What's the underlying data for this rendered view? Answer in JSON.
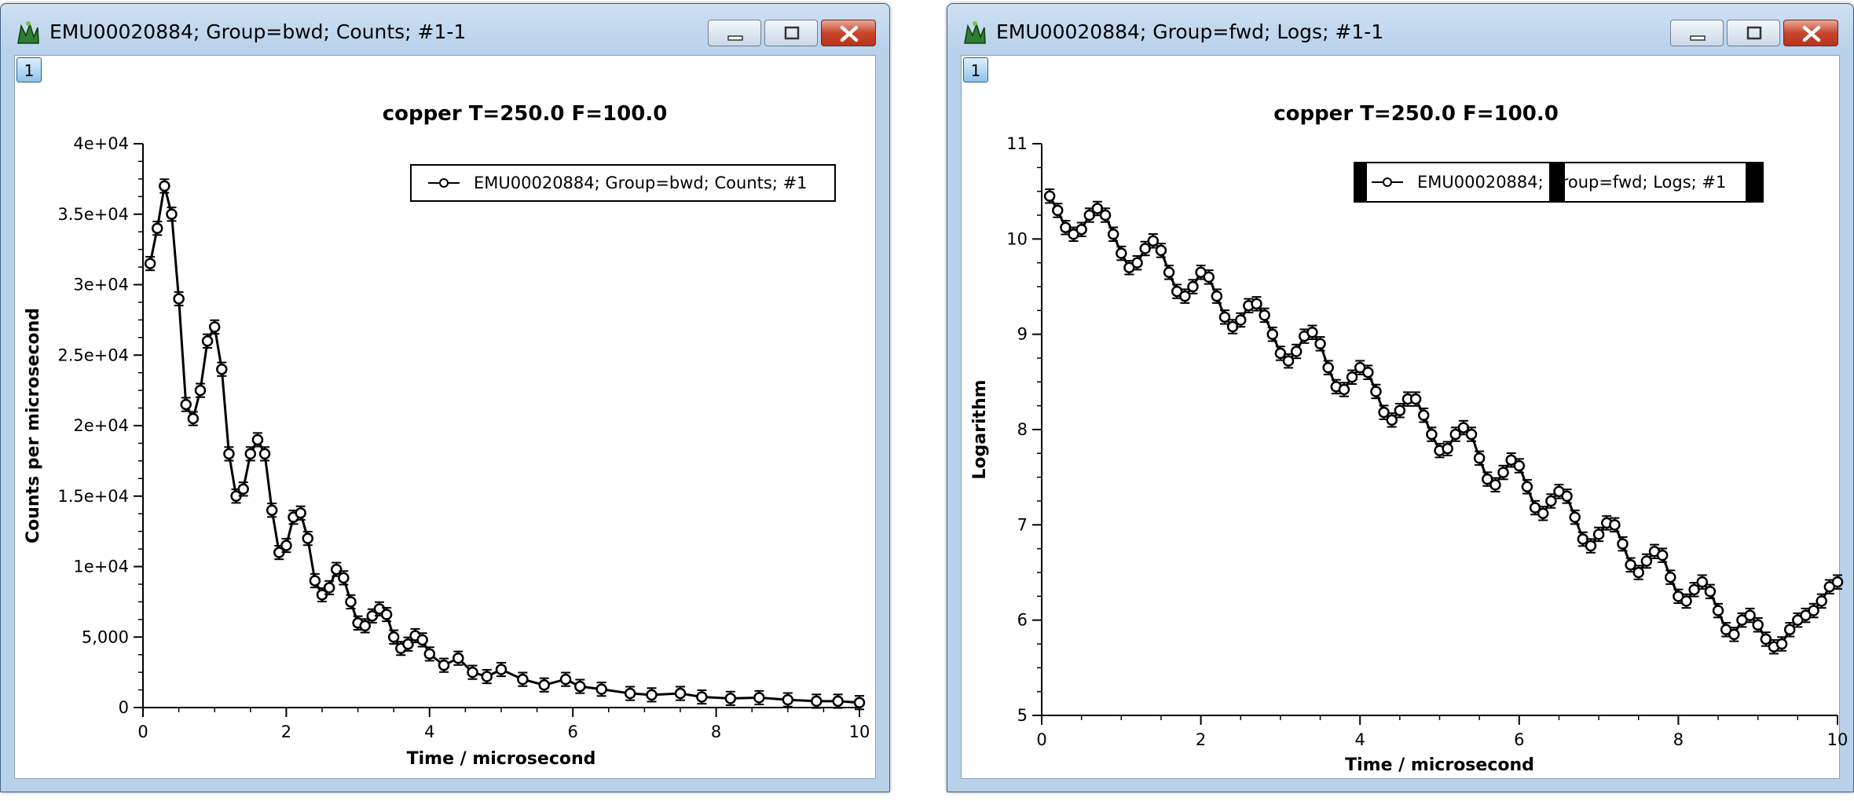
{
  "windows": [
    {
      "title": "EMU00020884; Group=bwd; Counts; #1-1",
      "graph_button_label": "1",
      "chart_data": {
        "type": "scatter",
        "title": "copper T=250.0 F=100.0",
        "xlabel": "Time / microsecond",
        "ylabel": "Counts per microsecond",
        "xlim": [
          0,
          10
        ],
        "ylim": [
          0,
          40000
        ],
        "x_ticks": [
          0,
          2,
          4,
          6,
          8,
          10
        ],
        "x_tick_labels": [
          "0",
          "2",
          "4",
          "6",
          "8",
          "10"
        ],
        "y_ticks": [
          0,
          5000,
          10000,
          15000,
          20000,
          25000,
          30000,
          35000,
          40000
        ],
        "y_tick_labels": [
          "0",
          "5,000",
          "1e+04",
          "1.5e+04",
          "2e+04",
          "2.5e+04",
          "3e+04",
          "3.5e+04",
          "4e+04"
        ],
        "grid": false,
        "legend_position": "top-right",
        "series": [
          {
            "name": "EMU00020884; Group=bwd; Counts; #1",
            "marker": "open-circle with error bars",
            "x": [
              0.1,
              0.2,
              0.3,
              0.4,
              0.5,
              0.6,
              0.7,
              0.8,
              0.9,
              1.0,
              1.1,
              1.2,
              1.3,
              1.4,
              1.5,
              1.6,
              1.7,
              1.8,
              1.9,
              2.0,
              2.1,
              2.2,
              2.3,
              2.4,
              2.5,
              2.6,
              2.7,
              2.8,
              2.9,
              3.0,
              3.1,
              3.2,
              3.3,
              3.4,
              3.5,
              3.6,
              3.7,
              3.8,
              3.9,
              4.0,
              4.2,
              4.4,
              4.6,
              4.8,
              5.0,
              5.3,
              5.6,
              5.9,
              6.1,
              6.4,
              6.8,
              7.1,
              7.5,
              7.8,
              8.2,
              8.6,
              9.0,
              9.4,
              9.7,
              10.0
            ],
            "y": [
              31500,
              34000,
              37000,
              35000,
              29000,
              21500,
              20500,
              22500,
              26000,
              27000,
              24000,
              18000,
              15000,
              15500,
              18000,
              19000,
              18000,
              14000,
              11000,
              11500,
              13500,
              13800,
              12000,
              9000,
              8000,
              8500,
              9800,
              9200,
              7500,
              6000,
              5800,
              6500,
              7000,
              6600,
              5000,
              4200,
              4500,
              5100,
              4800,
              3800,
              3000,
              3500,
              2500,
              2200,
              2700,
              2000,
              1600,
              2000,
              1500,
              1300,
              1000,
              900,
              1000,
              750,
              650,
              700,
              550,
              450,
              450,
              350
            ]
          }
        ]
      }
    },
    {
      "title": "EMU00020884; Group=fwd; Logs; #1-1",
      "graph_button_label": "1",
      "chart_data": {
        "type": "scatter",
        "title": "copper T=250.0 F=100.0",
        "xlabel": "Time / microsecond",
        "ylabel": "Logarithm",
        "xlim": [
          0,
          10
        ],
        "ylim": [
          5,
          11
        ],
        "x_ticks": [
          0,
          2,
          4,
          6,
          8,
          10
        ],
        "x_tick_labels": [
          "0",
          "2",
          "4",
          "6",
          "8",
          "10"
        ],
        "y_ticks": [
          5,
          6,
          7,
          8,
          9,
          10,
          11
        ],
        "y_tick_labels": [
          "5",
          "6",
          "7",
          "8",
          "9",
          "10",
          "11"
        ],
        "grid": false,
        "legend_position": "top-right",
        "series": [
          {
            "name": "EMU00020884; Group=fwd; Logs; #1",
            "marker": "open-circle with error bars",
            "x": [
              0.1,
              0.2,
              0.3,
              0.4,
              0.5,
              0.6,
              0.7,
              0.8,
              0.9,
              1.0,
              1.1,
              1.2,
              1.3,
              1.4,
              1.5,
              1.6,
              1.7,
              1.8,
              1.9,
              2.0,
              2.1,
              2.2,
              2.3,
              2.4,
              2.5,
              2.6,
              2.7,
              2.8,
              2.9,
              3.0,
              3.1,
              3.2,
              3.3,
              3.4,
              3.5,
              3.6,
              3.7,
              3.8,
              3.9,
              4.0,
              4.1,
              4.2,
              4.3,
              4.4,
              4.5,
              4.6,
              4.7,
              4.8,
              4.9,
              5.0,
              5.1,
              5.2,
              5.3,
              5.4,
              5.5,
              5.6,
              5.7,
              5.8,
              5.9,
              6.0,
              6.1,
              6.2,
              6.3,
              6.4,
              6.5,
              6.6,
              6.7,
              6.8,
              6.9,
              7.0,
              7.1,
              7.2,
              7.3,
              7.4,
              7.5,
              7.6,
              7.7,
              7.8,
              7.9,
              8.0,
              8.1,
              8.2,
              8.3,
              8.4,
              8.5,
              8.6,
              8.7,
              8.8,
              8.9,
              9.0,
              9.1,
              9.2,
              9.3,
              9.4,
              9.5,
              9.6,
              9.7,
              9.8,
              9.9,
              10.0
            ],
            "y": [
              10.45,
              10.3,
              10.12,
              10.05,
              10.1,
              10.25,
              10.32,
              10.25,
              10.05,
              9.85,
              9.7,
              9.75,
              9.9,
              9.98,
              9.88,
              9.65,
              9.45,
              9.4,
              9.5,
              9.65,
              9.6,
              9.4,
              9.18,
              9.08,
              9.15,
              9.3,
              9.32,
              9.2,
              9.0,
              8.8,
              8.72,
              8.82,
              8.98,
              9.02,
              8.9,
              8.65,
              8.45,
              8.42,
              8.55,
              8.65,
              8.6,
              8.4,
              8.18,
              8.1,
              8.2,
              8.32,
              8.32,
              8.15,
              7.95,
              7.78,
              7.8,
              7.95,
              8.02,
              7.95,
              7.7,
              7.48,
              7.42,
              7.55,
              7.68,
              7.62,
              7.4,
              7.18,
              7.12,
              7.25,
              7.35,
              7.3,
              7.08,
              6.85,
              6.78,
              6.9,
              7.02,
              7.0,
              6.8,
              6.58,
              6.5,
              6.62,
              6.72,
              6.68,
              6.45,
              6.25,
              6.2,
              6.32,
              6.4,
              6.3,
              6.1,
              5.9,
              5.85,
              6.0,
              6.05,
              5.95,
              5.8,
              5.72,
              5.75,
              5.9,
              6.0,
              6.05,
              6.1,
              6.2,
              6.35,
              6.4
            ]
          }
        ]
      }
    }
  ]
}
